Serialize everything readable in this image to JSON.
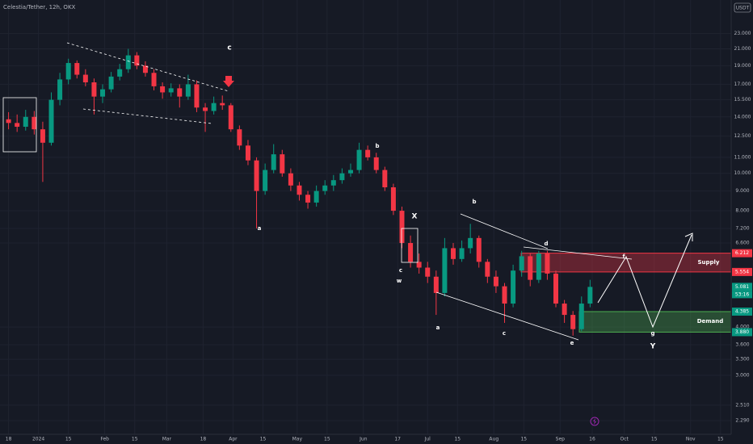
{
  "chart_data": {
    "type": "candlestick",
    "title": "Celestia/Tether, 12h, OKX",
    "currency": "USDT",
    "countdown": "53:16",
    "log_scale": true,
    "grid": true,
    "up_color": "#089981",
    "down_color": "#f23645",
    "x": [
      0,
      4,
      8,
      12,
      16,
      20,
      24,
      28,
      32,
      36,
      40,
      44,
      48,
      52,
      56,
      60,
      64,
      68,
      72,
      76,
      80,
      84,
      88,
      92,
      96,
      100,
      104,
      108,
      112,
      116,
      120,
      124,
      128,
      132,
      136,
      140,
      144,
      148,
      152,
      156,
      160,
      164,
      168,
      172,
      176,
      180,
      184,
      188,
      192,
      196,
      200,
      204,
      208,
      212,
      216,
      220,
      224,
      228,
      232,
      236,
      240,
      244,
      248,
      252,
      256,
      260,
      264,
      268,
      272
    ],
    "open": [
      13.8,
      13.5,
      13.2,
      14.0,
      13.0,
      12.0,
      15.5,
      17.5,
      19.3,
      18.0,
      17.2,
      15.8,
      16.5,
      17.8,
      18.6,
      20.2,
      19.0,
      18.2,
      16.8,
      16.2,
      16.6,
      15.8,
      17.0,
      14.8,
      14.5,
      15.2,
      15.0,
      13.0,
      11.8,
      10.8,
      9.0,
      10.2,
      11.2,
      10.0,
      9.3,
      8.8,
      8.4,
      9.0,
      9.3,
      9.6,
      10.0,
      10.2,
      11.5,
      11.0,
      10.2,
      9.2,
      8.0,
      6.6,
      5.9,
      5.7,
      5.4,
      4.9,
      6.4,
      6.0,
      6.4,
      6.8,
      5.9,
      5.4,
      5.1,
      4.6,
      5.6,
      6.1,
      5.3,
      6.2,
      5.5,
      4.6,
      4.3,
      3.95,
      4.6
    ],
    "high": [
      14.4,
      14.2,
      14.6,
      14.5,
      13.6,
      16.2,
      18.2,
      19.8,
      19.6,
      18.6,
      17.6,
      17.0,
      18.3,
      19.2,
      21.0,
      20.6,
      19.5,
      18.6,
      17.2,
      17.1,
      17.0,
      18.0,
      17.4,
      15.2,
      15.8,
      15.9,
      15.2,
      13.3,
      12.2,
      11.0,
      10.6,
      11.9,
      11.5,
      10.3,
      9.5,
      9.0,
      9.3,
      9.6,
      9.9,
      10.3,
      10.6,
      12.0,
      11.8,
      11.3,
      10.4,
      9.4,
      8.2,
      6.9,
      6.2,
      5.9,
      5.6,
      6.8,
      6.6,
      6.7,
      7.4,
      6.9,
      6.0,
      5.6,
      5.2,
      5.8,
      6.3,
      6.2,
      6.3,
      6.3,
      5.6,
      4.7,
      4.4,
      4.8,
      5.3
    ],
    "low": [
      13.0,
      12.8,
      12.9,
      12.6,
      9.5,
      11.8,
      15.0,
      17.0,
      17.6,
      16.8,
      14.2,
      15.2,
      16.2,
      17.4,
      18.2,
      18.6,
      17.8,
      16.4,
      15.6,
      15.8,
      14.8,
      15.5,
      14.4,
      12.8,
      14.2,
      14.6,
      12.8,
      11.5,
      10.5,
      7.2,
      8.8,
      10.0,
      9.8,
      9.0,
      8.5,
      8.1,
      8.2,
      8.8,
      9.0,
      9.4,
      9.8,
      10.0,
      10.8,
      10.0,
      9.0,
      7.8,
      6.4,
      5.7,
      5.5,
      5.2,
      4.3,
      4.8,
      5.8,
      5.9,
      6.2,
      5.7,
      5.2,
      4.9,
      4.1,
      4.5,
      5.4,
      5.1,
      5.2,
      5.3,
      4.5,
      4.1,
      3.8,
      3.9,
      4.5
    ],
    "close": [
      13.5,
      13.2,
      14.0,
      13.0,
      12.0,
      15.5,
      17.5,
      19.3,
      18.0,
      17.2,
      15.8,
      16.5,
      17.8,
      18.6,
      20.2,
      19.0,
      18.2,
      16.8,
      16.2,
      16.6,
      15.8,
      17.0,
      14.8,
      14.5,
      15.2,
      15.0,
      13.0,
      11.8,
      10.8,
      9.0,
      10.2,
      11.2,
      10.0,
      9.3,
      8.8,
      8.4,
      9.0,
      9.3,
      9.6,
      10.0,
      10.2,
      11.5,
      11.0,
      10.2,
      9.2,
      8.0,
      6.6,
      5.9,
      5.7,
      5.4,
      4.9,
      6.4,
      6.0,
      6.4,
      6.8,
      5.9,
      5.4,
      5.1,
      4.6,
      5.6,
      6.1,
      5.3,
      6.2,
      5.5,
      4.6,
      4.3,
      3.95,
      4.6,
      5.081
    ],
    "xlim": [
      -4,
      338
    ],
    "xticks": [
      {
        "value": 0,
        "label": "18"
      },
      {
        "value": 14,
        "label": "2024"
      },
      {
        "value": 28,
        "label": "15"
      },
      {
        "value": 45,
        "label": "Feb"
      },
      {
        "value": 59,
        "label": "15"
      },
      {
        "value": 74,
        "label": "Mar"
      },
      {
        "value": 91,
        "label": "18"
      },
      {
        "value": 105,
        "label": "Apr"
      },
      {
        "value": 119,
        "label": "15"
      },
      {
        "value": 135,
        "label": "May"
      },
      {
        "value": 149,
        "label": "15"
      },
      {
        "value": 166,
        "label": "Jun"
      },
      {
        "value": 182,
        "label": "17"
      },
      {
        "value": 196,
        "label": "Jul"
      },
      {
        "value": 210,
        "label": "15"
      },
      {
        "value": 227,
        "label": "Aug"
      },
      {
        "value": 241,
        "label": "15"
      },
      {
        "value": 258,
        "label": "Sep"
      },
      {
        "value": 273,
        "label": "16"
      },
      {
        "value": 288,
        "label": "Oct"
      },
      {
        "value": 302,
        "label": "15"
      },
      {
        "value": 319,
        "label": "Nov"
      },
      {
        "value": 333,
        "label": "15"
      }
    ],
    "ylim": [
      2.11,
      28.1
    ],
    "yticks": [
      {
        "value": 23,
        "label": "23.000"
      },
      {
        "value": 21,
        "label": "21.000"
      },
      {
        "value": 19,
        "label": "19.000"
      },
      {
        "value": 17,
        "label": "17.000"
      },
      {
        "value": 15.5,
        "label": "15.500"
      },
      {
        "value": 14,
        "label": "14.000"
      },
      {
        "value": 12.5,
        "label": "12.500"
      },
      {
        "value": 11,
        "label": "11.000"
      },
      {
        "value": 10,
        "label": "10.000"
      },
      {
        "value": 9,
        "label": "9.000"
      },
      {
        "value": 8,
        "label": "8.000"
      },
      {
        "value": 7.2,
        "label": "7.200"
      },
      {
        "value": 6.6,
        "label": "6.600"
      },
      {
        "value": 4,
        "label": "4.000"
      },
      {
        "value": 3.6,
        "label": "3.600"
      },
      {
        "value": 3.3,
        "label": "3.300"
      },
      {
        "value": 3,
        "label": "3.000"
      },
      {
        "value": 2.51,
        "label": "2.510"
      },
      {
        "value": 2.29,
        "label": "2.290"
      }
    ],
    "price_tags": [
      {
        "value": 6.212,
        "label": "6.212",
        "color": "#f23645"
      },
      {
        "value": 5.554,
        "label": "5.554",
        "color": "#f23645"
      },
      {
        "value": 5.081,
        "label": "5.081",
        "color": "#089981"
      },
      {
        "value": 4.385,
        "label": "4.385",
        "color": "#089981"
      },
      {
        "value": 3.88,
        "label": "3.880",
        "color": "#089981"
      }
    ],
    "zones": [
      {
        "name": "Supply",
        "color": "#f23645"
      },
      {
        "name": "Demand",
        "color": "#4caf50"
      }
    ],
    "annotations": [
      "c",
      "a",
      "b",
      "X",
      "c",
      "w",
      "b",
      "d",
      "a",
      "c",
      "e",
      "f",
      "g",
      "Y"
    ]
  }
}
